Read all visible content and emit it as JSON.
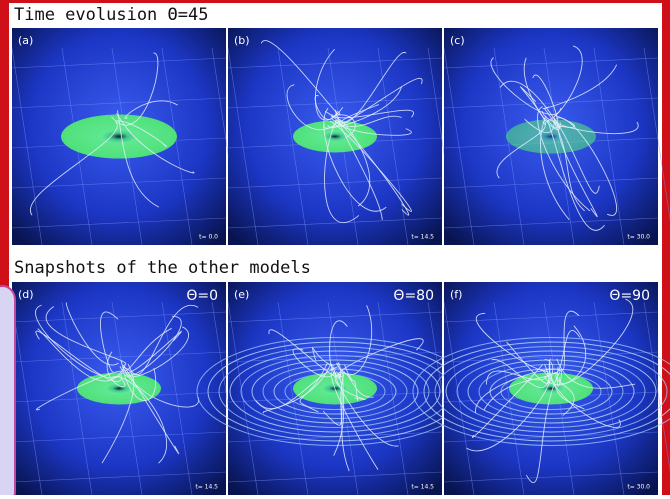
{
  "top": {
    "title": "Time evolusion  Θ=45",
    "panels": [
      {
        "label": "(a)",
        "time": "t= 0.0"
      },
      {
        "label": "(b)",
        "time": "t= 14.5"
      },
      {
        "label": "(c)",
        "time": "t= 30.0"
      }
    ]
  },
  "bottom": {
    "title": "Snapshots of the other models",
    "panels": [
      {
        "label": "(d)",
        "angle": "Θ=0",
        "time": "t= 14.5"
      },
      {
        "label": "(e)",
        "angle": "Θ=80",
        "time": "t= 14.5"
      },
      {
        "label": "(f)",
        "angle": "Θ=90",
        "time": "t= 30.0"
      }
    ]
  }
}
